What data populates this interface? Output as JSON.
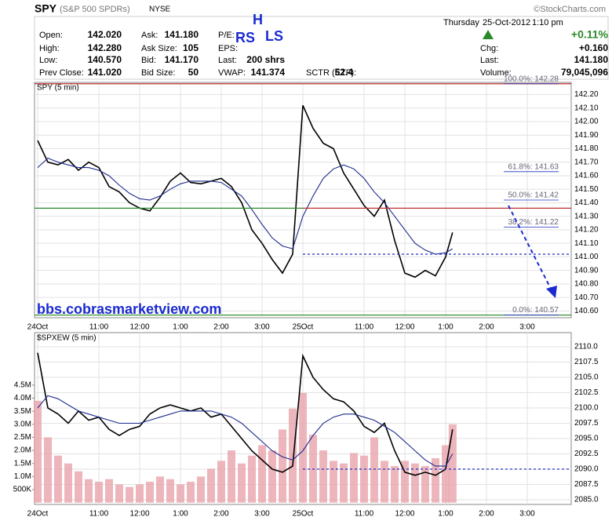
{
  "header": {
    "symbol": "SPY",
    "name": "(S&P 500 SPDRs)",
    "exchange": "NYSE",
    "source": "©StockCharts.com",
    "day": "Thursday",
    "date": "25-Oct-2012",
    "time": "1:10 pm",
    "pct_change": "+0.11%",
    "fields": [
      {
        "label": "Open:",
        "value": "142.020"
      },
      {
        "label": "High:",
        "value": "142.280"
      },
      {
        "label": "Low:",
        "value": "140.570"
      },
      {
        "label": "Prev Close:",
        "value": "141.020"
      },
      {
        "label": "Ask:",
        "value": "141.180"
      },
      {
        "label": "Ask Size:",
        "value": "105"
      },
      {
        "label": "Bid:",
        "value": "141.170"
      },
      {
        "label": "Bid Size:",
        "value": "50"
      },
      {
        "label": "P/E:"
      },
      {
        "label": "EPS:"
      },
      {
        "label": "Last:",
        "value": "200 shrs"
      },
      {
        "label": "VWAP:",
        "value": "141.374"
      },
      {
        "label": "SCTR (ETF):",
        "value": "52.4"
      },
      {
        "label": "Chg:",
        "value": "+0.160"
      },
      {
        "label": "Last:",
        "value": "141.180"
      },
      {
        "label": "Volume:",
        "value": "79,045,096"
      }
    ]
  },
  "annotations": {
    "h": "H",
    "rs": "RS",
    "ls": "LS",
    "site": "bbs.cobrasmarketview.com"
  },
  "chart_data": [
    {
      "type": "line",
      "title": "SPY (5 min)",
      "x": [
        0,
        0.25,
        0.5,
        0.75,
        1,
        1.25,
        1.5,
        1.75,
        2,
        2.25,
        2.5,
        2.75,
        3,
        3.25,
        3.5,
        3.75,
        4,
        4.25,
        4.5,
        4.75,
        5,
        5.25,
        5.5,
        5.75,
        6,
        6.25,
        6.5,
        6.75,
        7,
        7.25,
        7.5,
        7.75,
        8,
        8.25,
        8.5,
        8.75,
        9,
        9.25,
        9.5,
        9.75,
        10,
        10.17
      ],
      "series": [
        {
          "color": "#000000",
          "values": [
            141.86,
            141.7,
            141.68,
            141.72,
            141.64,
            141.7,
            141.66,
            141.52,
            141.48,
            141.4,
            141.36,
            141.34,
            141.44,
            141.56,
            141.62,
            141.55,
            141.54,
            141.56,
            141.58,
            141.52,
            141.4,
            141.2,
            141.1,
            140.98,
            140.88,
            141.02,
            142.12,
            141.95,
            141.84,
            141.8,
            141.62,
            141.5,
            141.38,
            141.3,
            141.42,
            141.12,
            140.88,
            140.85,
            140.9,
            140.86,
            141.0,
            141.18
          ]
        },
        {
          "color": "#1c2a8c",
          "values": [
            141.66,
            141.73,
            141.7,
            141.68,
            141.66,
            141.66,
            141.64,
            141.6,
            141.53,
            141.47,
            141.43,
            141.42,
            141.45,
            141.5,
            141.54,
            141.56,
            141.56,
            141.56,
            141.55,
            141.5,
            141.45,
            141.35,
            141.24,
            141.14,
            141.08,
            141.06,
            141.3,
            141.45,
            141.58,
            141.65,
            141.68,
            141.65,
            141.58,
            141.48,
            141.4,
            141.3,
            141.2,
            141.1,
            141.05,
            141.02,
            141.03,
            141.06
          ]
        }
      ],
      "xlim": [
        -0.077,
        13.077
      ],
      "xticks": [
        {
          "value": 0,
          "label": "24Oct"
        },
        {
          "value": 1.5,
          "label": "11:00"
        },
        {
          "value": 2.5,
          "label": "12:00"
        },
        {
          "value": 3.5,
          "label": "1:00"
        },
        {
          "value": 4.5,
          "label": "2:00"
        },
        {
          "value": 5.5,
          "label": "3:00"
        },
        {
          "value": 6.5,
          "label": "25Oct"
        },
        {
          "value": 8,
          "label": "11:00"
        },
        {
          "value": 9,
          "label": "12:00"
        },
        {
          "value": 10,
          "label": "1:00"
        },
        {
          "value": 11,
          "label": "2:00"
        },
        {
          "value": 12,
          "label": "3:00"
        }
      ],
      "ylim": [
        140.55,
        142.29
      ],
      "yticks": [
        {
          "value": 140.6,
          "label": "140.60"
        },
        {
          "value": 140.7,
          "label": "140.70"
        },
        {
          "value": 140.8,
          "label": "140.80"
        },
        {
          "value": 140.9,
          "label": "140.90"
        },
        {
          "value": 141,
          "label": "141.00"
        },
        {
          "value": 141.1,
          "label": "141.10"
        },
        {
          "value": 141.2,
          "label": "141.20"
        },
        {
          "value": 141.3,
          "label": "141.30"
        },
        {
          "value": 141.4,
          "label": "141.40"
        },
        {
          "value": 141.5,
          "label": "141.50"
        },
        {
          "value": 141.6,
          "label": "141.60"
        },
        {
          "value": 141.7,
          "label": "141.70"
        },
        {
          "value": 141.8,
          "label": "141.80"
        },
        {
          "value": 141.9,
          "label": "141.90"
        },
        {
          "value": 142,
          "label": "142.00"
        },
        {
          "value": 142.1,
          "label": "142.10"
        },
        {
          "value": 142.2,
          "label": "142.20"
        }
      ],
      "grid": true,
      "hlines": [
        {
          "value": 142.28,
          "color": "#c03030",
          "x": [
            -0.077,
            13.077
          ]
        },
        {
          "value": 141.36,
          "color": "#2a8a2a",
          "x": [
            -0.077,
            6.5
          ]
        },
        {
          "value": 141.36,
          "color": "#c03030",
          "x": [
            6.5,
            13.077
          ]
        },
        {
          "value": 141.02,
          "color": "#2030c0",
          "x": [
            6.5,
            13.077
          ],
          "dash": true
        },
        {
          "value": 140.57,
          "color": "#2a8a2a",
          "x": [
            -0.077,
            13.077
          ]
        }
      ],
      "levels": [
        {
          "value": 142.28,
          "label": "100.0%: 142.28"
        },
        {
          "value": 141.63,
          "label": "61.8%: 141.63"
        },
        {
          "value": 141.42,
          "label": "50.0%: 141.42"
        },
        {
          "value": 141.22,
          "label": "38.2%: 141.22"
        },
        {
          "value": 140.57,
          "label": "0.0%: 140.57"
        }
      ]
    },
    {
      "type": "line",
      "title": "$SPXEW (5 min)",
      "x": [
        0,
        0.25,
        0.5,
        0.75,
        1,
        1.25,
        1.5,
        1.75,
        2,
        2.25,
        2.5,
        2.75,
        3,
        3.25,
        3.5,
        3.75,
        4,
        4.25,
        4.5,
        4.75,
        5,
        5.25,
        5.5,
        5.75,
        6,
        6.25,
        6.5,
        6.75,
        7,
        7.25,
        7.5,
        7.75,
        8,
        8.25,
        8.5,
        8.75,
        9,
        9.25,
        9.5,
        9.75,
        10,
        10.17
      ],
      "series": [
        {
          "type": "bar",
          "axis": "y2",
          "color": "#e8a4ac",
          "values": [
            3900000,
            2500000,
            1800000,
            1500000,
            1200000,
            900000,
            800000,
            900000,
            700000,
            600000,
            700000,
            800000,
            1000000,
            900000,
            700000,
            800000,
            1000000,
            1300000,
            1600000,
            2000000,
            1500000,
            1800000,
            2200000,
            2000000,
            2800000,
            3600000,
            4200000,
            2600000,
            2000000,
            1600000,
            1500000,
            1900000,
            1800000,
            2500000,
            1600000,
            1400000,
            1600000,
            1500000,
            1400000,
            1700000,
            2200000,
            3000000
          ]
        },
        {
          "color": "#000000",
          "values": [
            2109,
            2100,
            2099,
            2097.5,
            2099.5,
            2098,
            2098.5,
            2096.5,
            2095.5,
            2096.5,
            2097,
            2099,
            2100,
            2100.5,
            2100,
            2099.5,
            2100,
            2098.5,
            2099,
            2097,
            2095,
            2093,
            2091.5,
            2090,
            2089.5,
            2090.5,
            2108.5,
            2105,
            2103,
            2101.5,
            2101,
            2099.5,
            2097,
            2096,
            2097.5,
            2093,
            2089.5,
            2089,
            2089.5,
            2089,
            2090,
            2096.5
          ]
        },
        {
          "color": "#1c2a8c",
          "values": [
            2100,
            2102,
            2101.5,
            2100.5,
            2099.5,
            2099,
            2098.5,
            2098,
            2097.5,
            2097.5,
            2097.5,
            2098,
            2098.5,
            2099,
            2099.5,
            2099.5,
            2099.5,
            2099.5,
            2099,
            2098.5,
            2097.5,
            2096,
            2094.5,
            2093,
            2092,
            2091.5,
            2093,
            2095.5,
            2097.5,
            2098.5,
            2099,
            2099,
            2098.5,
            2098,
            2097,
            2096,
            2094.5,
            2093,
            2091.5,
            2090.5,
            2090.5,
            2092.5
          ]
        }
      ],
      "xlim": [
        -0.077,
        13.077
      ],
      "xticks": [
        {
          "value": 0,
          "label": "24Oct"
        },
        {
          "value": 1.5,
          "label": "11:00"
        },
        {
          "value": 2.5,
          "label": "12:00"
        },
        {
          "value": 3.5,
          "label": "1:00"
        },
        {
          "value": 4.5,
          "label": "2:00"
        },
        {
          "value": 5.5,
          "label": "3:00"
        },
        {
          "value": 6.5,
          "label": "25Oct"
        },
        {
          "value": 8,
          "label": "11:00"
        },
        {
          "value": 9,
          "label": "12:00"
        },
        {
          "value": 10,
          "label": "1:00"
        },
        {
          "value": 11,
          "label": "2:00"
        },
        {
          "value": 12,
          "label": "3:00"
        }
      ],
      "ylim": [
        2084.23,
        2112.3
      ],
      "yticks": [
        {
          "value": 2085,
          "label": "2085.0"
        },
        {
          "value": 2087.5,
          "label": "2087.5"
        },
        {
          "value": 2090,
          "label": "2090.0"
        },
        {
          "value": 2092.5,
          "label": "2092.5"
        },
        {
          "value": 2095,
          "label": "2095.0"
        },
        {
          "value": 2097.5,
          "label": "2097.5"
        },
        {
          "value": 2100,
          "label": "2100.0"
        },
        {
          "value": 2102.5,
          "label": "2102.5"
        },
        {
          "value": 2105,
          "label": "2105.0"
        },
        {
          "value": 2107.5,
          "label": "2107.5"
        },
        {
          "value": 2110,
          "label": "2110.0"
        }
      ],
      "y2lim": [
        -70000,
        6510000
      ],
      "y2ticks": [
        {
          "value": 500000,
          "label": "500K"
        },
        {
          "value": 1000000,
          "label": "1.0M"
        },
        {
          "value": 1500000,
          "label": "1.5M"
        },
        {
          "value": 2000000,
          "label": "2.0M"
        },
        {
          "value": 2500000,
          "label": "2.5M"
        },
        {
          "value": 3000000,
          "label": "3.0M"
        },
        {
          "value": 3500000,
          "label": "3.5M"
        },
        {
          "value": 4000000,
          "label": "4.0M"
        },
        {
          "value": 4500000,
          "label": "4.5M"
        }
      ],
      "grid": true,
      "hlines": [
        {
          "value": 2090,
          "color": "#2030c0",
          "x": [
            6.5,
            13.077
          ],
          "dash": true
        }
      ]
    }
  ]
}
